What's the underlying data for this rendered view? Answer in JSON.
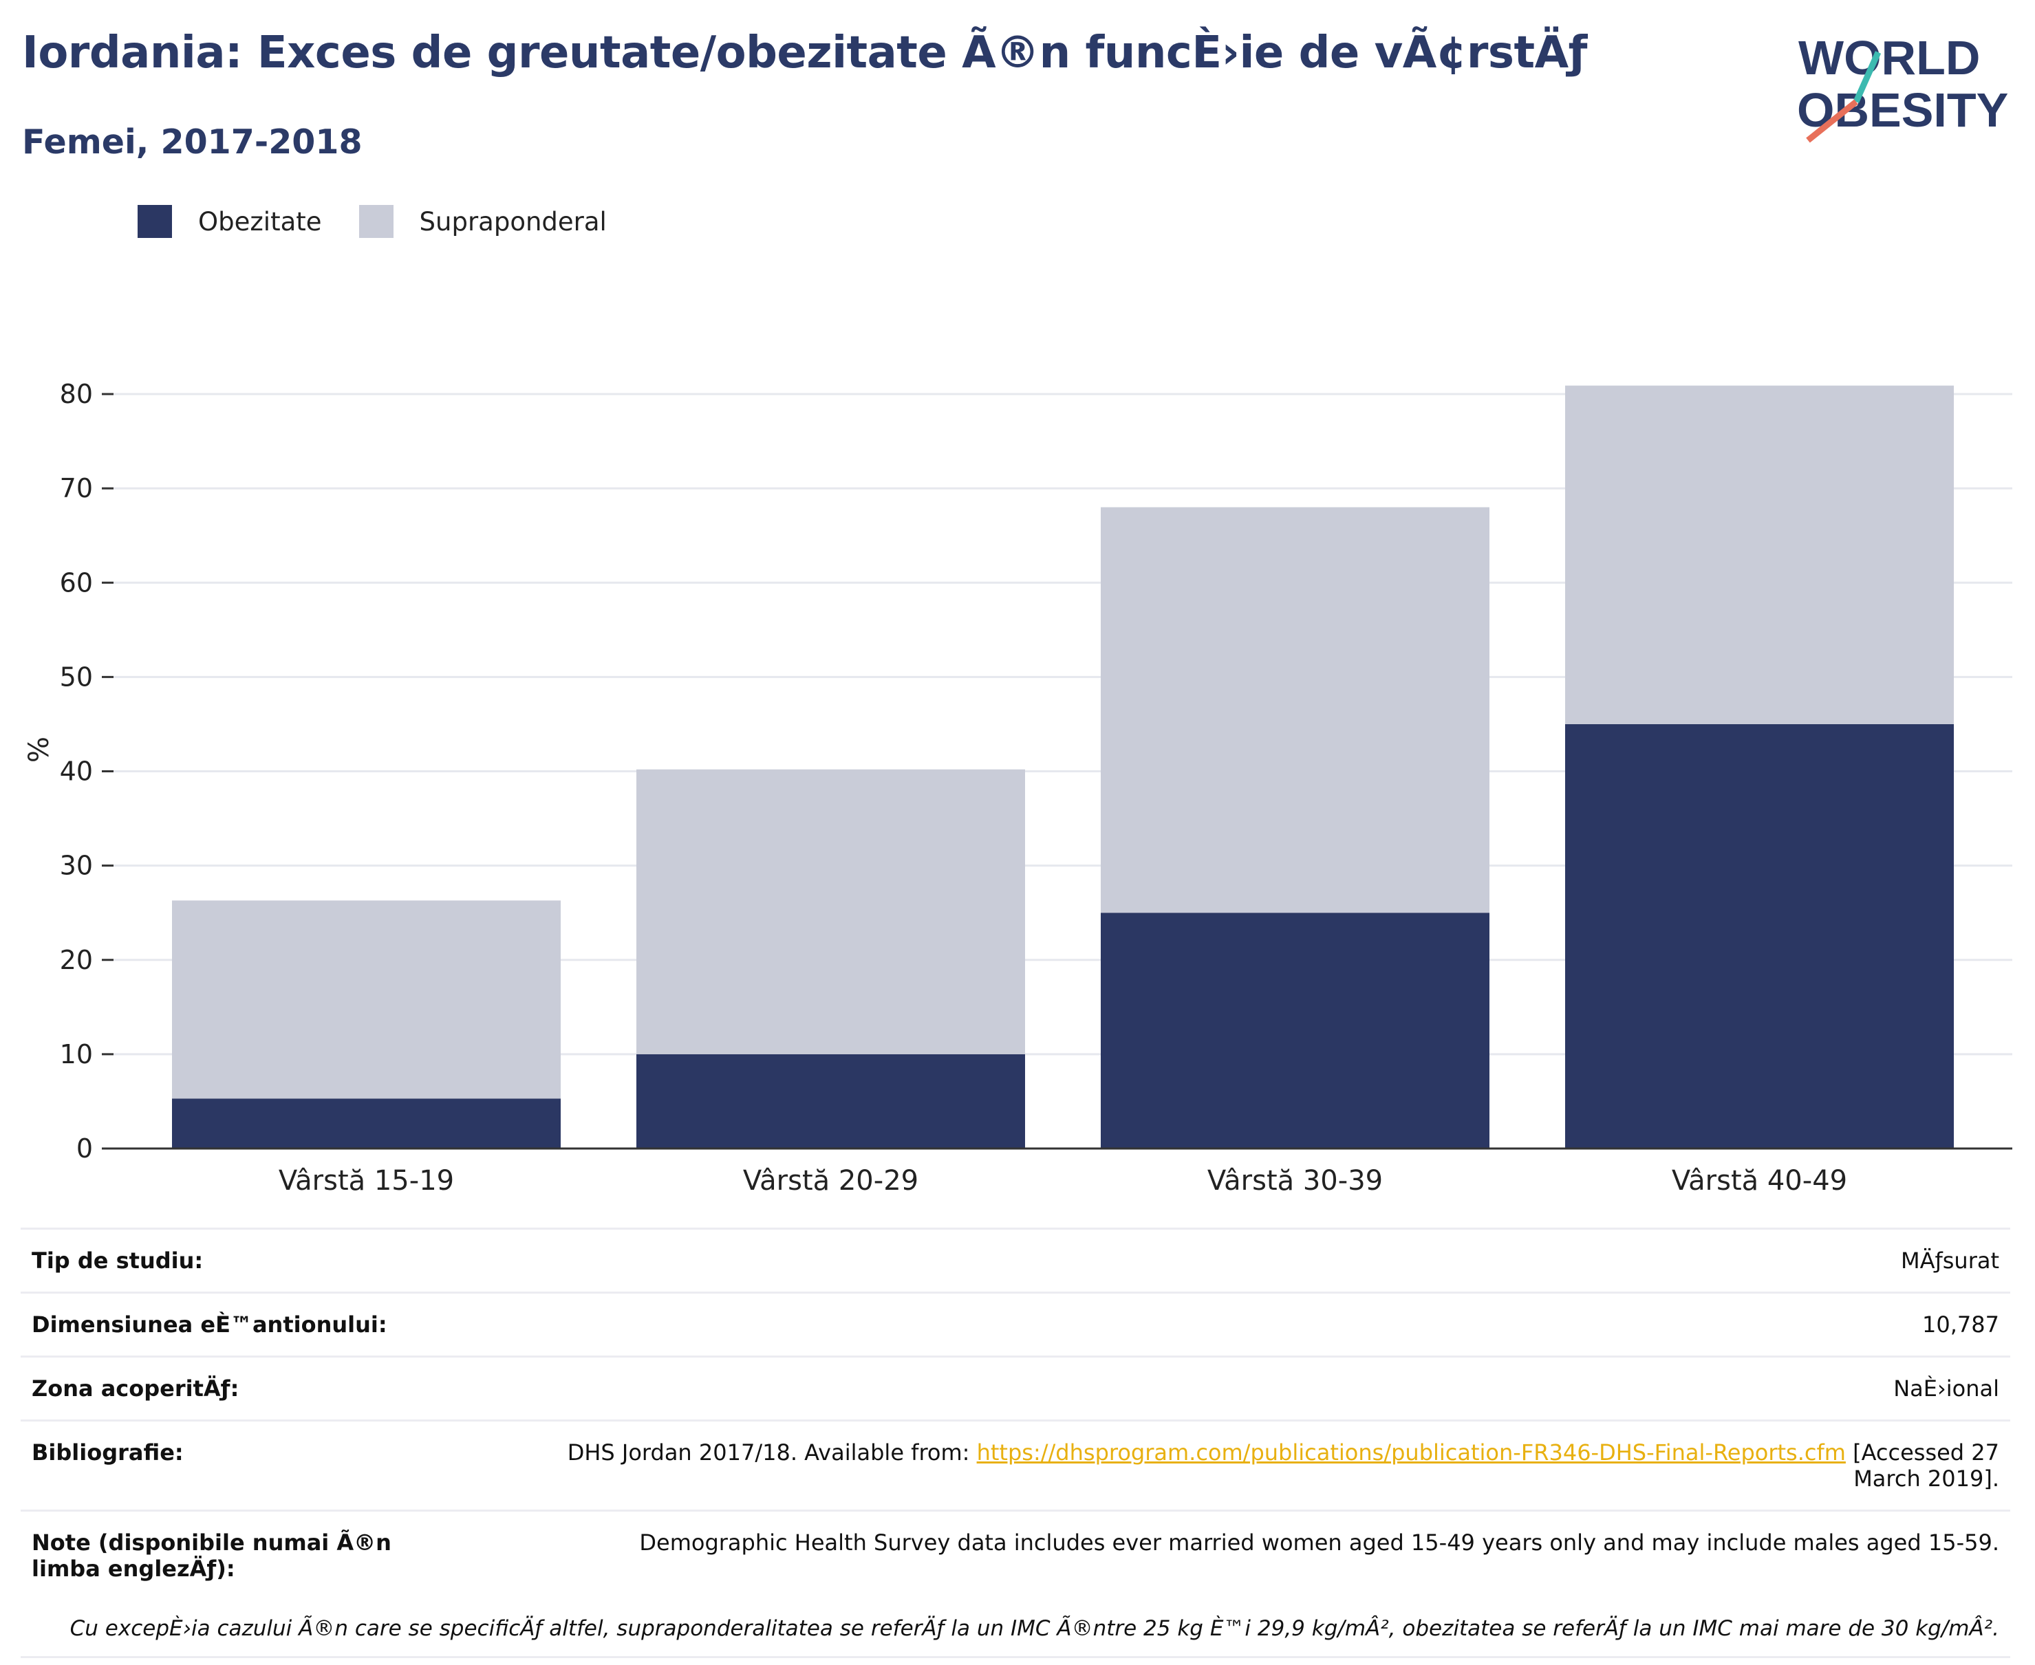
{
  "header": {
    "title": "Iordania: Exces de greutate/obezitate Ã®n funcÈ›ie de vÃ¢rstÄƒ",
    "subtitle": "Femei, 2017-2018"
  },
  "logo": {
    "line1": "WORLD",
    "line2": "OBESITY"
  },
  "colors": {
    "obesity": "#2b3763",
    "overweight": "#c9ccd8",
    "title": "#2b3a67",
    "link": "#e8b010",
    "accent_teal": "#3cbab0",
    "accent_red": "#e8705a"
  },
  "chart_data": {
    "type": "bar",
    "stacked": true,
    "categories": [
      "Vârstă 15-19",
      "Vârstă 20-29",
      "Vârstă 30-39",
      "Vârstă 40-49"
    ],
    "series": [
      {
        "name": "Obezitate",
        "values": [
          5.3,
          10.0,
          25.0,
          45.0
        ]
      },
      {
        "name": "Supraponderal",
        "values": [
          21.0,
          30.2,
          43.0,
          35.9
        ]
      }
    ],
    "totals": [
      26.3,
      40.2,
      68.0,
      80.9
    ],
    "ylabel": "%",
    "ylim": [
      0,
      80
    ],
    "yticks": [
      0,
      10,
      20,
      30,
      40,
      50,
      60,
      70,
      80
    ],
    "grid": true,
    "legend_position": "top-left"
  },
  "meta": {
    "rows": [
      {
        "label": "Tip de studiu:",
        "value": "MÄƒsurat"
      },
      {
        "label": "Dimensiunea eÈ™antionului:",
        "value": "10,787"
      },
      {
        "label": "Zona acoperitÄƒ:",
        "value": "NaÈ›ional"
      }
    ],
    "bibliography": {
      "label": "Bibliografie:",
      "prefix": "DHS Jordan 2017/18. Available from: ",
      "link": "https://dhsprogram.com/publications/publication-FR346-DHS-Final-Reports.cfm",
      "suffix": " [Accessed 27 March 2019]."
    },
    "notes": {
      "label": "Note (disponibile numai Ã®n limba englezÄƒ):",
      "value": "Demographic Health Survey data includes ever married women aged 15-49 years only and may include males aged 15-59."
    },
    "footnote": "Cu excepÈ›ia cazului Ã®n care se specificÄƒ altfel, supraponderalitatea se referÄƒ la un IMC Ã®ntre 25 kg È™i 29,9 kg/mÂ², obezitatea se referÄƒ la un IMC mai mare de 30 kg/mÂ²."
  }
}
